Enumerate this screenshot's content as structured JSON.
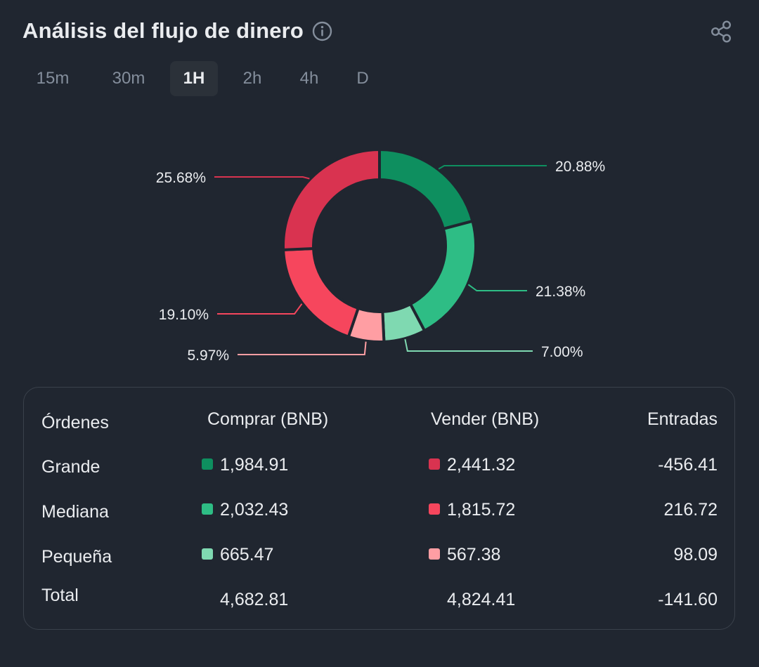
{
  "header": {
    "title": "Análisis del flujo de dinero"
  },
  "icons": {
    "info": "info-icon",
    "share": "share-icon"
  },
  "tabs": [
    {
      "label": "15m",
      "active": false
    },
    {
      "label": "30m",
      "active": false
    },
    {
      "label": "1H",
      "active": true
    },
    {
      "label": "2h",
      "active": false
    },
    {
      "label": "4h",
      "active": false
    },
    {
      "label": "D",
      "active": false
    }
  ],
  "colors": {
    "buy_large": "#0e8f5f",
    "buy_medium": "#2ebd85",
    "buy_small": "#7fd9b1",
    "sell_large": "#d93350",
    "sell_medium": "#f6465d",
    "sell_small": "#ff9ea3",
    "background": "#202630"
  },
  "chart_data": {
    "type": "pie",
    "donut": true,
    "slices": [
      {
        "label": "20.88%",
        "value": 20.88,
        "color": "#0e8f5f"
      },
      {
        "label": "21.38%",
        "value": 21.38,
        "color": "#2ebd85"
      },
      {
        "label": "7.00%",
        "value": 7.0,
        "color": "#7fd9b1"
      },
      {
        "label": "5.97%",
        "value": 5.97,
        "color": "#ff9ea3"
      },
      {
        "label": "19.10%",
        "value": 19.1,
        "color": "#f6465d"
      },
      {
        "label": "25.68%",
        "value": 25.68,
        "color": "#d93350"
      }
    ]
  },
  "table": {
    "headers": {
      "orders": "Órdenes",
      "buy": "Comprar (BNB)",
      "sell": "Vender (BNB)",
      "inflow": "Entradas"
    },
    "rows": [
      {
        "label": "Grande",
        "buy": "1,984.91",
        "sell": "2,441.32",
        "inflow": "-456.41",
        "buy_color": "#0e8f5f",
        "sell_color": "#d93350"
      },
      {
        "label": "Mediana",
        "buy": "2,032.43",
        "sell": "1,815.72",
        "inflow": "216.72",
        "buy_color": "#2ebd85",
        "sell_color": "#f6465d"
      },
      {
        "label": "Pequeña",
        "buy": "665.47",
        "sell": "567.38",
        "inflow": "98.09",
        "buy_color": "#7fd9b1",
        "sell_color": "#ff9ea3"
      }
    ],
    "total": {
      "label": "Total",
      "buy": "4,682.81",
      "sell": "4,824.41",
      "inflow": "-141.60"
    }
  }
}
